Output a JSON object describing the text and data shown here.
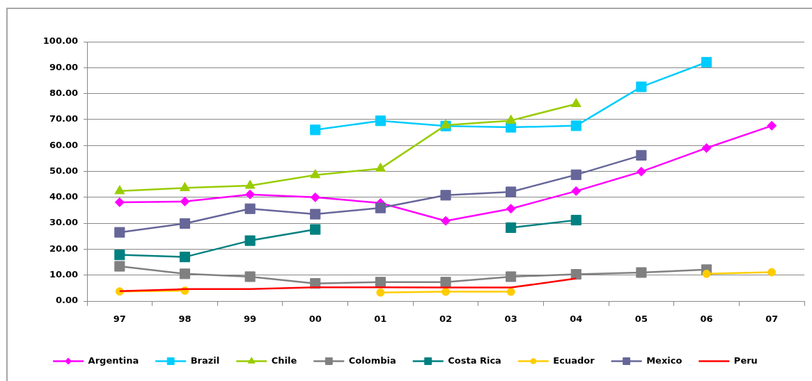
{
  "chart_data": {
    "type": "line",
    "categories": [
      "97",
      "98",
      "99",
      "00",
      "01",
      "02",
      "03",
      "04",
      "05",
      "06",
      "07"
    ],
    "ylim": [
      0,
      100
    ],
    "yticks": [
      {
        "value": 0,
        "label": "0.00"
      },
      {
        "value": 10,
        "label": "10.00"
      },
      {
        "value": 20,
        "label": "20.00"
      },
      {
        "value": 30,
        "label": "30.00"
      },
      {
        "value": 40,
        "label": "40.00"
      },
      {
        "value": 50,
        "label": "50.00"
      },
      {
        "value": 60,
        "label": "60.00"
      },
      {
        "value": 70,
        "label": "70.00"
      },
      {
        "value": 80,
        "label": "80.00"
      },
      {
        "value": 90,
        "label": "90.00"
      },
      {
        "value": 100,
        "label": "100.00"
      }
    ],
    "grid": "y",
    "legend": "bottom",
    "series": [
      {
        "name": "Argentina",
        "color": "#ff00ff",
        "marker": "diamond",
        "values": [
          38.1,
          38.4,
          41.1,
          40.0,
          37.8,
          30.9,
          35.6,
          42.4,
          49.9,
          59.0,
          67.6
        ]
      },
      {
        "name": "Brazil",
        "color": "#00ccff",
        "marker": "square",
        "values": [
          null,
          null,
          null,
          66.0,
          69.5,
          67.5,
          67.0,
          67.6,
          82.6,
          92.1,
          null
        ]
      },
      {
        "name": "Chile",
        "color": "#99cc00",
        "marker": "triangle",
        "values": [
          42.4,
          43.6,
          44.5,
          48.6,
          51.1,
          67.8,
          69.6,
          76.0,
          null,
          null,
          null
        ]
      },
      {
        "name": "Colombia",
        "color": "#808080",
        "marker": "square",
        "values": [
          13.4,
          10.5,
          9.4,
          6.8,
          7.3,
          7.3,
          9.4,
          10.3,
          11.0,
          12.1,
          null
        ]
      },
      {
        "name": "Costa Rica",
        "color": "#008080",
        "marker": "square",
        "values": [
          17.8,
          17.0,
          23.3,
          27.6,
          null,
          null,
          28.3,
          31.2,
          null,
          null,
          null
        ]
      },
      {
        "name": "Ecuador",
        "color": "#ffcc00",
        "marker": "circle",
        "values": [
          3.7,
          4.0,
          null,
          null,
          3.3,
          3.6,
          3.6,
          null,
          null,
          10.5,
          11.1
        ]
      },
      {
        "name": "Mexico",
        "color": "#666699",
        "marker": "square",
        "values": [
          26.5,
          29.9,
          35.6,
          33.5,
          35.9,
          40.8,
          42.1,
          48.7,
          56.2,
          null,
          null
        ]
      },
      {
        "name": "Peru",
        "color": "#ff0000",
        "marker": "none",
        "values": [
          3.8,
          4.6,
          4.6,
          5.3,
          5.3,
          5.2,
          5.2,
          8.7,
          null,
          null,
          null
        ]
      }
    ]
  }
}
